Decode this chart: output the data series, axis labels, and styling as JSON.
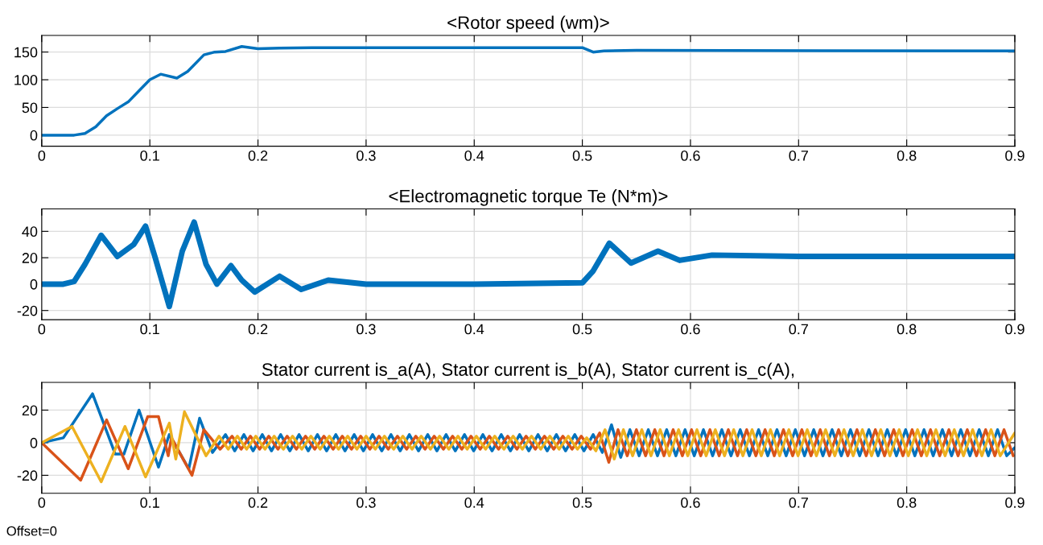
{
  "chart_data": [
    {
      "type": "line",
      "title": "<Rotor speed (wm)>",
      "xlim": [
        0,
        0.9
      ],
      "xticks": [
        0,
        0.1,
        0.2,
        0.3,
        0.4,
        0.5,
        0.6,
        0.7,
        0.8,
        0.9
      ],
      "ylim": [
        -20,
        180
      ],
      "yticks": [
        0,
        50,
        100,
        150
      ],
      "grid": true,
      "series": [
        {
          "color": "#0072bd",
          "x": [
            0,
            0.03,
            0.04,
            0.05,
            0.06,
            0.07,
            0.08,
            0.09,
            0.1,
            0.11,
            0.125,
            0.135,
            0.15,
            0.16,
            0.17,
            0.185,
            0.2,
            0.22,
            0.25,
            0.3,
            0.5,
            0.51,
            0.52,
            0.55,
            0.9
          ],
          "values": [
            0,
            0,
            3,
            15,
            35,
            48,
            60,
            80,
            100,
            110,
            103,
            115,
            145,
            150,
            151,
            160,
            156,
            157,
            158,
            158,
            158,
            150,
            152,
            153,
            152
          ]
        }
      ]
    },
    {
      "type": "line",
      "title": "<Electromagnetic torque Te (N*m)>",
      "xlim": [
        0,
        0.9
      ],
      "xticks": [
        0,
        0.1,
        0.2,
        0.3,
        0.4,
        0.5,
        0.6,
        0.7,
        0.8,
        0.9
      ],
      "ylim": [
        -27,
        57
      ],
      "yticks": [
        -20,
        0,
        20,
        40
      ],
      "grid": true,
      "series": [
        {
          "color": "#0072bd",
          "x": [
            0,
            0.02,
            0.03,
            0.04,
            0.055,
            0.07,
            0.085,
            0.096,
            0.105,
            0.118,
            0.13,
            0.141,
            0.152,
            0.162,
            0.175,
            0.185,
            0.197,
            0.22,
            0.24,
            0.265,
            0.3,
            0.4,
            0.5,
            0.51,
            0.525,
            0.545,
            0.57,
            0.59,
            0.62,
            0.7,
            0.9
          ],
          "values": [
            0,
            0,
            2,
            15,
            37,
            21,
            30,
            44,
            20,
            -17,
            25,
            47,
            15,
            0,
            14,
            3,
            -6,
            6,
            -4,
            3,
            0,
            0,
            1,
            10,
            31,
            16,
            25,
            18,
            22,
            21,
            21
          ]
        }
      ]
    },
    {
      "type": "line",
      "title": "Stator current is_a(A), Stator current is_b(A), Stator current is_c(A),",
      "xlim": [
        0,
        0.9
      ],
      "xticks": [
        0,
        0.1,
        0.2,
        0.3,
        0.4,
        0.5,
        0.6,
        0.7,
        0.8,
        0.9
      ],
      "ylim": [
        -31,
        37
      ],
      "yticks": [
        -20,
        0,
        20
      ],
      "grid": true,
      "annotations": [
        "Offset=0"
      ],
      "series": [
        {
          "color": "#0072bd",
          "x": [
            0,
            0.02,
            0.047,
            0.068,
            0.076,
            0.09,
            0.108,
            0.118,
            0.136,
            0.146,
            0.158,
            0.17,
            0.1785,
            0.187,
            0.1955,
            0.204,
            0.2125,
            0.221,
            0.2295,
            0.238,
            0.2465,
            0.255,
            0.2635,
            0.272,
            0.2805,
            0.289,
            0.2975,
            0.306,
            0.3145,
            0.323,
            0.3315,
            0.34,
            0.3485,
            0.357,
            0.3655,
            0.374,
            0.3825,
            0.391,
            0.3995,
            0.408,
            0.4165,
            0.425,
            0.4335,
            0.442,
            0.4505,
            0.459,
            0.4675,
            0.476,
            0.4845,
            0.493,
            0.5015,
            0.51,
            0.5185,
            0.527,
            0.5355,
            0.544,
            0.5525,
            0.561,
            0.5695,
            0.578,
            0.5865,
            0.595,
            0.6035,
            0.612,
            0.6205,
            0.629,
            0.6375,
            0.646,
            0.6545,
            0.663,
            0.6715,
            0.68,
            0.6885,
            0.697,
            0.7055,
            0.714,
            0.7225,
            0.731,
            0.7395,
            0.748,
            0.7565,
            0.765,
            0.7735,
            0.782,
            0.7905,
            0.799,
            0.8075,
            0.816,
            0.8245,
            0.833,
            0.8415,
            0.85,
            0.8585,
            0.867,
            0.8755,
            0.884,
            0.8925,
            0.9
          ],
          "values": [
            0,
            3,
            30,
            -7,
            -7,
            20,
            -15,
            5,
            -16,
            15,
            -6,
            5,
            -5,
            5,
            -5,
            5,
            -5,
            5,
            -5,
            5,
            -5,
            5,
            -5,
            5,
            -5,
            5,
            -5,
            5,
            -5,
            5,
            -5,
            5,
            -5,
            5,
            -5,
            5,
            -5,
            5,
            -5,
            5,
            -5,
            5,
            -5,
            5,
            -5,
            5,
            -5,
            5,
            -5,
            5,
            -5,
            5,
            -6,
            11,
            -9,
            8,
            -8,
            8,
            -8,
            8,
            -8,
            8,
            -8,
            8,
            -8,
            8,
            -8,
            8,
            -8,
            8,
            -8,
            8,
            -8,
            8,
            -8,
            8,
            -8,
            8,
            -8,
            8,
            -8,
            8,
            -8,
            8,
            -8,
            8,
            -8,
            8,
            -8,
            8,
            -8,
            8,
            -8,
            8,
            -8,
            8,
            -8,
            -3
          ]
        },
        {
          "color": "#d95319",
          "x": [
            0,
            0.036,
            0.06,
            0.08,
            0.098,
            0.108,
            0.117,
            0.12,
            0.139,
            0.15,
            0.165,
            0.176,
            0.1845,
            0.193,
            0.2015,
            0.21,
            0.2185,
            0.227,
            0.2355,
            0.244,
            0.2525,
            0.261,
            0.2695,
            0.278,
            0.2865,
            0.295,
            0.3035,
            0.312,
            0.3205,
            0.329,
            0.3375,
            0.346,
            0.3545,
            0.363,
            0.3715,
            0.38,
            0.3885,
            0.397,
            0.4055,
            0.414,
            0.4225,
            0.431,
            0.4395,
            0.448,
            0.4565,
            0.465,
            0.4735,
            0.482,
            0.4905,
            0.499,
            0.5075,
            0.516,
            0.5245,
            0.533,
            0.5415,
            0.55,
            0.5585,
            0.567,
            0.5755,
            0.584,
            0.5925,
            0.601,
            0.6095,
            0.618,
            0.6265,
            0.635,
            0.6435,
            0.652,
            0.6605,
            0.669,
            0.6775,
            0.686,
            0.6945,
            0.703,
            0.7115,
            0.72,
            0.7285,
            0.737,
            0.7455,
            0.754,
            0.7625,
            0.771,
            0.7795,
            0.788,
            0.7965,
            0.805,
            0.8135,
            0.822,
            0.8305,
            0.839,
            0.8475,
            0.856,
            0.8645,
            0.873,
            0.8815,
            0.89,
            0.8985
          ],
          "values": [
            0,
            -23,
            14,
            -16,
            16,
            16,
            -8,
            3,
            -20,
            8,
            -4,
            4,
            -4,
            4,
            -4,
            4,
            -4,
            4,
            -4,
            4,
            -4,
            4,
            -4,
            4,
            -4,
            4,
            -4,
            4,
            -4,
            4,
            -4,
            4,
            -4,
            4,
            -4,
            4,
            -4,
            4,
            -4,
            4,
            -4,
            4,
            -4,
            4,
            -4,
            4,
            -4,
            4,
            -4,
            4,
            -4,
            6,
            -12,
            8,
            -8,
            8,
            -8,
            8,
            -8,
            8,
            -8,
            8,
            -8,
            8,
            -8,
            8,
            -8,
            8,
            -8,
            8,
            -8,
            8,
            -8,
            8,
            -8,
            8,
            -8,
            8,
            -8,
            8,
            -8,
            8,
            -8,
            8,
            -8,
            8,
            -8,
            8,
            -8,
            8,
            -8,
            8,
            -8,
            8,
            -8,
            8,
            -8
          ]
        },
        {
          "color": "#edb120",
          "x": [
            0,
            0.028,
            0.055,
            0.077,
            0.096,
            0.118,
            0.124,
            0.132,
            0.152,
            0.164,
            0.1725,
            0.181,
            0.1895,
            0.198,
            0.2065,
            0.215,
            0.2235,
            0.232,
            0.2405,
            0.249,
            0.2575,
            0.266,
            0.2745,
            0.283,
            0.2915,
            0.3,
            0.3085,
            0.317,
            0.3255,
            0.334,
            0.3425,
            0.351,
            0.3595,
            0.368,
            0.3765,
            0.385,
            0.3935,
            0.402,
            0.4105,
            0.419,
            0.4275,
            0.436,
            0.4445,
            0.453,
            0.4615,
            0.47,
            0.4785,
            0.487,
            0.4955,
            0.504,
            0.5125,
            0.521,
            0.5295,
            0.538,
            0.5465,
            0.555,
            0.5635,
            0.572,
            0.5805,
            0.589,
            0.5975,
            0.606,
            0.6145,
            0.623,
            0.6315,
            0.64,
            0.6485,
            0.657,
            0.6655,
            0.674,
            0.6825,
            0.691,
            0.6995,
            0.708,
            0.7165,
            0.725,
            0.7335,
            0.742,
            0.7505,
            0.759,
            0.7675,
            0.776,
            0.7845,
            0.793,
            0.8015,
            0.81,
            0.8185,
            0.827,
            0.8355,
            0.844,
            0.8525,
            0.861,
            0.8695,
            0.878,
            0.8865,
            0.9
          ],
          "values": [
            0,
            10,
            -24,
            10,
            -21,
            12,
            -10,
            19,
            -8,
            4,
            -4,
            4,
            -4,
            4,
            -4,
            4,
            -4,
            4,
            -4,
            4,
            -4,
            4,
            -4,
            4,
            -4,
            4,
            -4,
            4,
            -4,
            4,
            -4,
            4,
            -4,
            4,
            -4,
            4,
            -4,
            4,
            -4,
            4,
            -4,
            4,
            -4,
            4,
            -4,
            4,
            -4,
            4,
            -4,
            3,
            -5,
            8,
            -10,
            8,
            -8,
            8,
            -8,
            8,
            -8,
            8,
            -8,
            8,
            -8,
            8,
            -8,
            8,
            -8,
            8,
            -8,
            8,
            -8,
            8,
            -8,
            8,
            -8,
            8,
            -8,
            8,
            -8,
            8,
            -8,
            8,
            -8,
            8,
            -8,
            8,
            -8,
            8,
            -8,
            8,
            -8,
            8,
            -8,
            8,
            -8,
            6
          ]
        }
      ]
    }
  ]
}
